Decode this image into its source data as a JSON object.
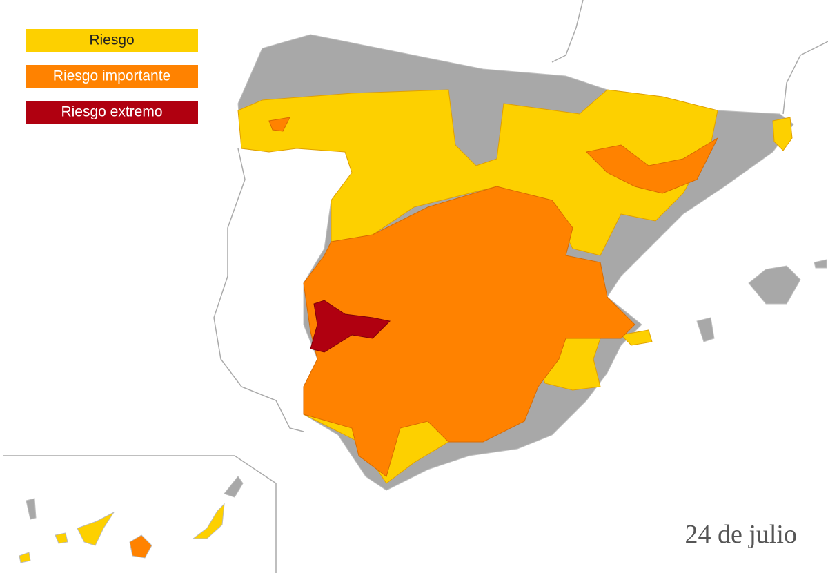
{
  "legend": {
    "items": [
      {
        "label": "Riesgo",
        "color": "#fdd000",
        "text_color": "#222222"
      },
      {
        "label": "Riesgo importante",
        "color": "#ff8200",
        "text_color": "#ffffff"
      },
      {
        "label": "Riesgo extremo",
        "color": "#b00010",
        "text_color": "#ffffff"
      }
    ]
  },
  "date": "24 de julio"
}
